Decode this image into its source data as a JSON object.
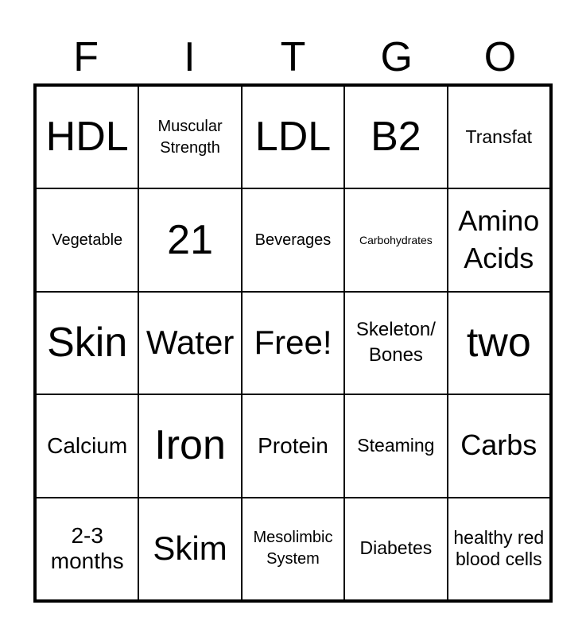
{
  "title_letters": [
    "F",
    "I",
    "T",
    "G",
    "O"
  ],
  "cells": [
    "HDL",
    "Muscular Strength",
    "LDL",
    "B2",
    "Transfat",
    "Vegetable",
    "21",
    "Beverages",
    "Carbohydrates",
    "Amino Acids",
    "Skin",
    "Water",
    "Free!",
    "Skeleton/ Bones",
    "two",
    "Calcium",
    "Iron",
    "Protein",
    "Steaming",
    "Carbs",
    "2-3 months",
    "Skim",
    "Mesolimbic System",
    "Diabetes",
    "healthy red blood cells"
  ]
}
